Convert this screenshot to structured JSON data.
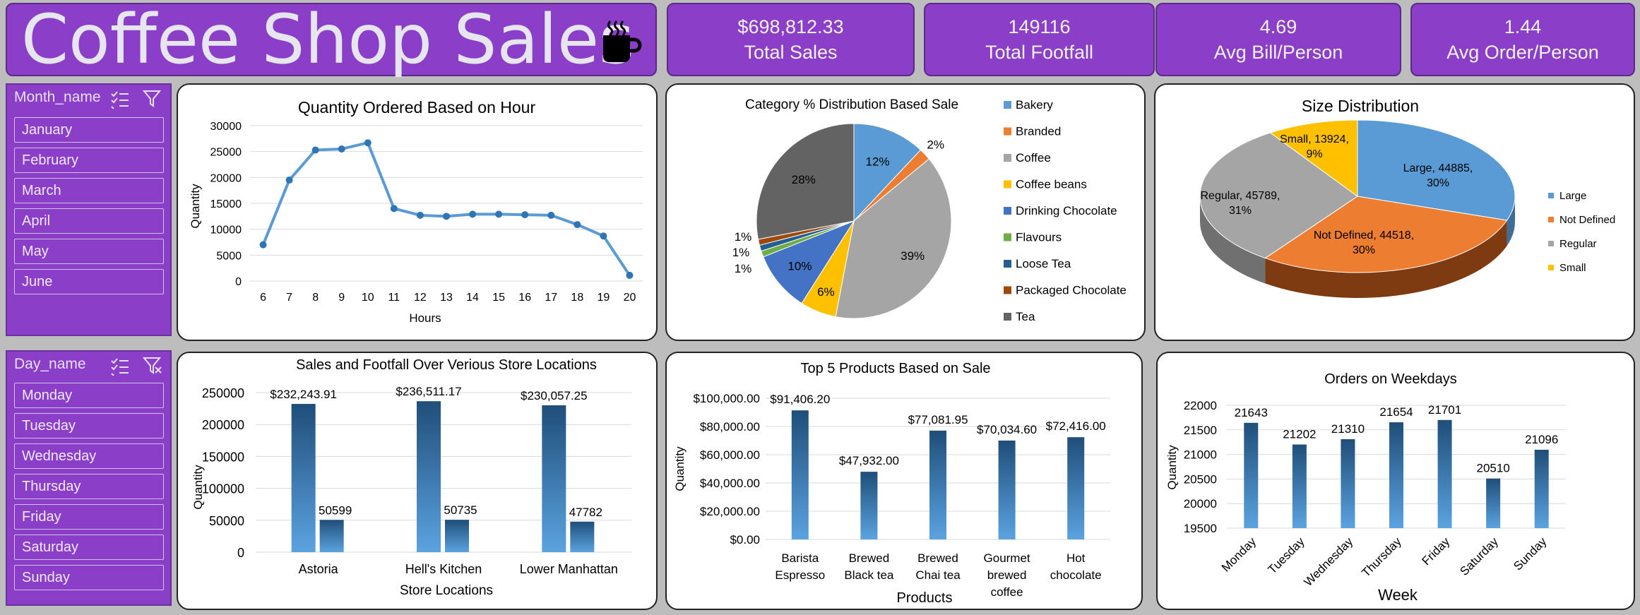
{
  "header": {
    "title": "Coffee Shop Sales",
    "icon": "coffee-cup-icon",
    "accent": "#8B3FC8"
  },
  "kpis": [
    {
      "value": "$698,812.33",
      "label": "Total Sales"
    },
    {
      "value": "149116",
      "label": "Total Footfall"
    },
    {
      "value": "4.69",
      "label": "Avg Bill/Person"
    },
    {
      "value": "1.44",
      "label": "Avg Order/Person"
    }
  ],
  "month_slicer": {
    "header": "Month_name",
    "items": [
      "January",
      "February",
      "March",
      "April",
      "May",
      "June"
    ]
  },
  "day_slicer": {
    "header": "Day_name",
    "items": [
      "Monday",
      "Tuesday",
      "Wednesday",
      "Thursday",
      "Friday",
      "Saturday",
      "Sunday"
    ]
  },
  "chart_data": [
    {
      "id": "hourly",
      "type": "line",
      "title": "Quantity Ordered Based on Hour",
      "xlabel": "Hours",
      "ylabel": "Quantity",
      "x": [
        6,
        7,
        8,
        9,
        10,
        11,
        12,
        13,
        14,
        15,
        16,
        17,
        18,
        19,
        20
      ],
      "values": [
        7000,
        19500,
        25300,
        25500,
        26700,
        14000,
        12700,
        12500,
        12900,
        12900,
        12800,
        12700,
        10900,
        8700,
        1100
      ],
      "ylim": [
        0,
        30000
      ],
      "yticks": [
        0,
        5000,
        10000,
        15000,
        20000,
        25000,
        30000
      ],
      "color": "#5B9BD5"
    },
    {
      "id": "category",
      "type": "pie",
      "title": "Category % Distribution Based Sale",
      "categories": [
        "Bakery",
        "Branded",
        "Coffee",
        "Coffee beans",
        "Drinking Chocolate",
        "Flavours",
        "Loose Tea",
        "Packaged Chocolate",
        "Tea"
      ],
      "values": [
        12,
        2,
        39,
        6,
        10,
        1,
        1,
        1,
        28
      ],
      "labels": [
        "12%",
        "2%",
        "39%",
        "6%",
        "10%",
        "1%",
        "1%",
        "1%",
        "28%"
      ],
      "colors": [
        "#5B9BD5",
        "#ED7D31",
        "#A5A5A5",
        "#FFC000",
        "#4472C4",
        "#70AD47",
        "#255E91",
        "#9E480E",
        "#636363"
      ],
      "legend": "right"
    },
    {
      "id": "size",
      "type": "pie",
      "title": "Size Distribution",
      "categories": [
        "Large",
        "Not Defined",
        "Regular",
        "Small"
      ],
      "values": [
        44885,
        44518,
        45789,
        13924
      ],
      "labels": [
        "Large, 44885, 30%",
        "Not Defined, 44518, 30%",
        "Regular, 45789, 31%",
        "Small, 13924, 9%"
      ],
      "colors": [
        "#5B9BD5",
        "#ED7D31",
        "#A5A5A5",
        "#FFC000"
      ],
      "legend": "right"
    },
    {
      "id": "stores",
      "type": "bar",
      "title": "Sales and Footfall Over Verious Store Locations",
      "xlabel": "Store Locations",
      "ylabel": "Quantity",
      "categories": [
        "Astoria",
        "Hell's Kitchen",
        "Lower Manhattan"
      ],
      "series": [
        {
          "values": [
            232243.91,
            236511.17,
            230057.25
          ],
          "labels": [
            "$232,243.91",
            "$236,511.17",
            "$230,057.25"
          ]
        },
        {
          "values": [
            50599,
            50735,
            47782
          ],
          "labels": [
            "50599",
            "50735",
            "47782"
          ]
        }
      ],
      "ylim": [
        0,
        250000
      ],
      "yticks": [
        "0",
        "50000",
        "100000",
        "150000",
        "200000",
        "250000"
      ]
    },
    {
      "id": "products",
      "type": "bar",
      "title": "Top 5 Products Based on Sale",
      "xlabel": "Products",
      "ylabel": "Quantity",
      "categories": [
        [
          "Barista",
          "Espresso"
        ],
        [
          "Brewed",
          "Black tea"
        ],
        [
          "Brewed",
          "Chai tea"
        ],
        [
          "Gourmet",
          "brewed",
          "coffee"
        ],
        [
          "Hot",
          "chocolate"
        ]
      ],
      "values": [
        91406.2,
        47932,
        77081.95,
        70034.6,
        72416
      ],
      "labels": [
        "$91,406.20",
        "$47,932.00",
        "$77,081.95",
        "$70,034.60",
        "$72,416.00"
      ],
      "ylim": [
        0,
        100000
      ],
      "yticks": [
        "$0.00",
        "$20,000.00",
        "$40,000.00",
        "$60,000.00",
        "$80,000.00",
        "$100,000.00"
      ]
    },
    {
      "id": "weekdays",
      "type": "bar",
      "title": "Orders on Weekdays",
      "xlabel": "Week",
      "ylabel": "Quantity",
      "categories": [
        "Monday",
        "Tuesday",
        "Wednesday",
        "Thursday",
        "Friday",
        "Saturday",
        "Sunday"
      ],
      "values": [
        21643,
        21202,
        21310,
        21654,
        21701,
        20510,
        21096
      ],
      "labels": [
        "21643",
        "21202",
        "21310",
        "21654",
        "21701",
        "20510",
        "21096"
      ],
      "ylim": [
        19500,
        22000
      ],
      "yticks": [
        "19500",
        "20000",
        "20500",
        "21000",
        "21500",
        "22000"
      ]
    }
  ]
}
